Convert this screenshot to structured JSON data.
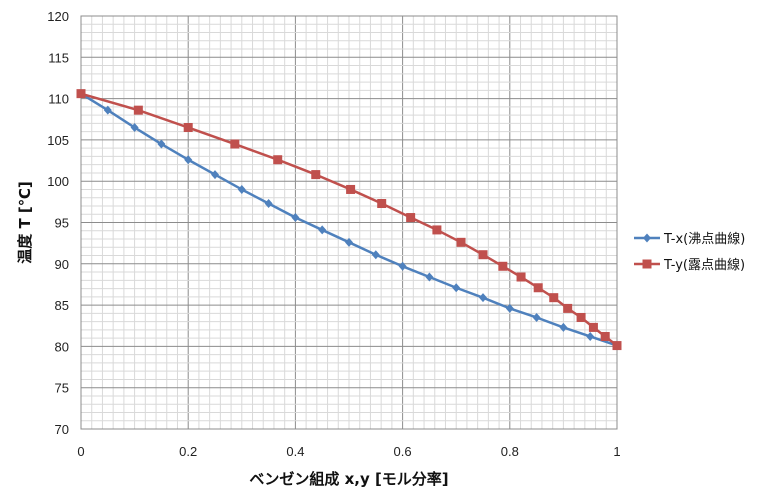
{
  "chart_data": {
    "type": "line",
    "xlabel": "ベンゼン組成 x,y [モル分率]",
    "ylabel": "温度 T [℃]",
    "xlim": [
      0,
      1
    ],
    "ylim": [
      70,
      120
    ],
    "x_ticks": [
      "0",
      "0.2",
      "0.4",
      "0.6",
      "0.8",
      "1"
    ],
    "y_ticks": [
      "70",
      "75",
      "80",
      "85",
      "90",
      "95",
      "100",
      "105",
      "110",
      "115",
      "120"
    ],
    "grid": "on",
    "legend_position": "right",
    "series": [
      {
        "name": "T-x(沸点曲線)",
        "color": "#4F81BD",
        "marker": "diamond",
        "points": [
          [
            0,
            110.6
          ],
          [
            0.05,
            108.6
          ],
          [
            0.1,
            106.5
          ],
          [
            0.15,
            104.5
          ],
          [
            0.2,
            102.6
          ],
          [
            0.25,
            100.8
          ],
          [
            0.3,
            99.0
          ],
          [
            0.35,
            97.3
          ],
          [
            0.4,
            95.6
          ],
          [
            0.45,
            94.1
          ],
          [
            0.5,
            92.6
          ],
          [
            0.55,
            91.1
          ],
          [
            0.6,
            89.7
          ],
          [
            0.65,
            88.4
          ],
          [
            0.7,
            87.1
          ],
          [
            0.75,
            85.9
          ],
          [
            0.8,
            84.6
          ],
          [
            0.85,
            83.5
          ],
          [
            0.9,
            82.3
          ],
          [
            0.95,
            81.2
          ],
          [
            1.0,
            80.1
          ]
        ]
      },
      {
        "name": "T-y(露点曲線)",
        "color": "#C0504D",
        "marker": "square",
        "points": [
          [
            0,
            110.6
          ],
          [
            0.107,
            108.6
          ],
          [
            0.2,
            106.5
          ],
          [
            0.287,
            104.5
          ],
          [
            0.367,
            102.6
          ],
          [
            0.438,
            100.8
          ],
          [
            0.503,
            99.0
          ],
          [
            0.561,
            97.3
          ],
          [
            0.615,
            95.6
          ],
          [
            0.664,
            94.1
          ],
          [
            0.709,
            92.6
          ],
          [
            0.75,
            91.1
          ],
          [
            0.787,
            89.7
          ],
          [
            0.821,
            88.4
          ],
          [
            0.853,
            87.1
          ],
          [
            0.882,
            85.9
          ],
          [
            0.908,
            84.6
          ],
          [
            0.933,
            83.5
          ],
          [
            0.956,
            82.3
          ],
          [
            0.978,
            81.2
          ],
          [
            1.0,
            80.1
          ]
        ]
      }
    ]
  }
}
